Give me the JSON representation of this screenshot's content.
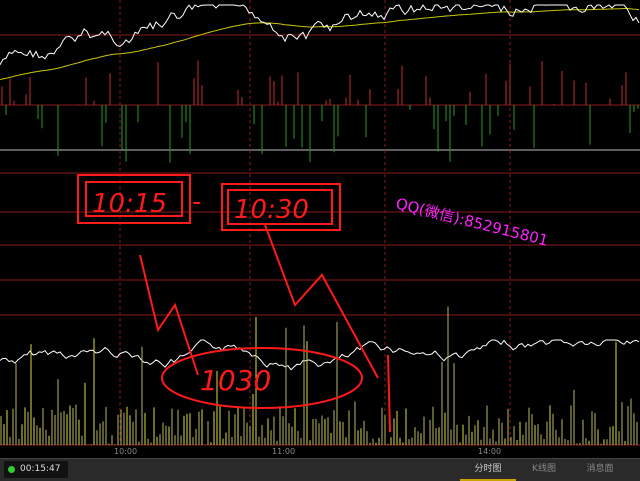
{
  "colors": {
    "grid": "#8a1a1a",
    "price_line": "#ffffff",
    "avg_line": "#c8c800",
    "up_bar": "#c03030",
    "down_bar": "#2a9a2a",
    "annotation": "#ff1a1a",
    "watermark": "#ff22ff",
    "volume_bar": "#b8b860"
  },
  "time_axis": [
    "10:00",
    "11:00",
    "14:00"
  ],
  "annotations": {
    "box1": "10:15",
    "dash": "-",
    "box2": "10:30",
    "ellipse": "1030"
  },
  "watermark": "QQ(微信):852915801",
  "status": {
    "clock": "00:15:47",
    "indicator": "green-dot-icon"
  },
  "tabs": [
    {
      "label": "分时图",
      "active": true
    },
    {
      "label": "K线图",
      "active": false
    },
    {
      "label": "消息面",
      "active": false
    }
  ]
}
